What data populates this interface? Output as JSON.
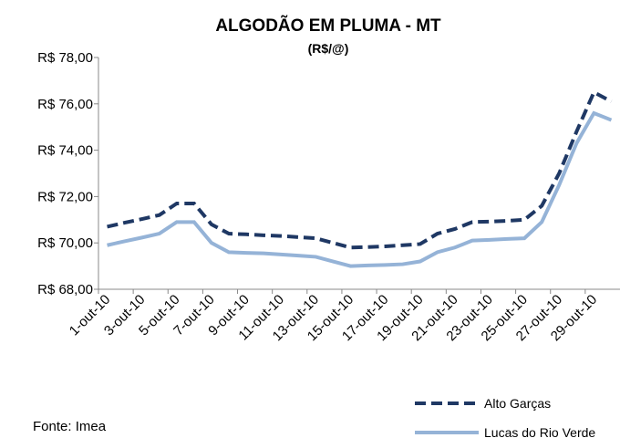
{
  "chart_data": {
    "type": "line",
    "title": "ALGODÃO EM PLUMA - MT",
    "subtitle": "(R$/@)",
    "source": "Fonte: Imea",
    "categories": [
      "1-out-10",
      null,
      "3-out-10",
      null,
      "5-out-10",
      null,
      "7-out-10",
      null,
      "9-out-10",
      null,
      "11-out-10",
      null,
      "13-out-10",
      null,
      "15-out-10",
      null,
      "17-out-10",
      null,
      "19-out-10",
      null,
      "21-out-10",
      null,
      "23-out-10",
      null,
      "25-out-10",
      null,
      "27-out-10",
      null,
      "29-out-10",
      null
    ],
    "series": [
      {
        "name": "Alto Garças",
        "color": "#1f3864",
        "dash": true,
        "values": [
          70.7,
          70.87,
          71.03,
          71.2,
          71.7,
          71.7,
          70.8,
          70.4,
          70.37,
          70.33,
          70.3,
          70.25,
          70.2,
          70.0,
          69.8,
          69.82,
          69.85,
          69.9,
          69.95,
          70.4,
          70.6,
          70.9,
          70.92,
          70.95,
          71.0,
          71.6,
          73.0,
          74.8,
          76.5,
          76.1
        ]
      },
      {
        "name": "Lucas do Rio Verde",
        "color": "#95b3d7",
        "dash": false,
        "values": [
          69.9,
          70.07,
          70.23,
          70.4,
          70.9,
          70.9,
          70.0,
          69.6,
          69.57,
          69.55,
          69.5,
          69.45,
          69.4,
          69.2,
          69.0,
          69.03,
          69.05,
          69.08,
          69.2,
          69.6,
          69.8,
          70.1,
          70.13,
          70.17,
          70.2,
          70.9,
          72.5,
          74.3,
          75.6,
          75.3
        ]
      }
    ],
    "ylim": [
      68,
      78
    ],
    "yticks": [
      {
        "value": 68,
        "label": "R$ 68,00"
      },
      {
        "value": 70,
        "label": "R$ 70,00"
      },
      {
        "value": 72,
        "label": "R$ 72,00"
      },
      {
        "value": 74,
        "label": "R$ 74,00"
      },
      {
        "value": 76,
        "label": "R$ 76,00"
      },
      {
        "value": 78,
        "label": "R$ 78,00"
      }
    ],
    "legend": "bottom-right"
  }
}
